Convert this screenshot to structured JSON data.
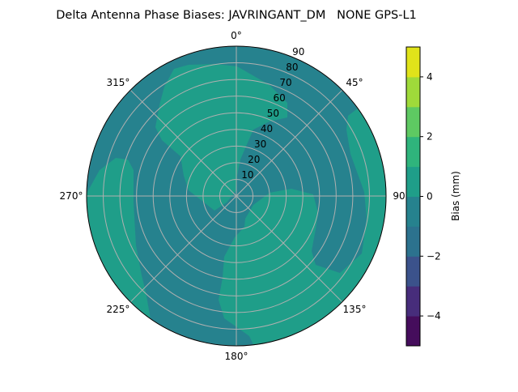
{
  "chart_data": {
    "type": "heatmap",
    "subtype": "polar-contour",
    "title": "Delta Antenna Phase Biases: JAVRINGANT_DM   NONE GPS-L1",
    "angular_axis": {
      "direction": "clockwise",
      "zero_location": "top",
      "tick_labels": [
        "0°",
        "45°",
        "90°",
        "135°",
        "180°",
        "225°",
        "270°",
        "315°"
      ],
      "tick_values": [
        0,
        45,
        90,
        135,
        180,
        225,
        270,
        315
      ]
    },
    "radial_axis": {
      "range": [
        0,
        90
      ],
      "tick_values": [
        10,
        20,
        30,
        40,
        50,
        60,
        70,
        80,
        90
      ],
      "tick_labels": [
        "10",
        "20",
        "30",
        "40",
        "50",
        "60",
        "70",
        "80",
        "90"
      ],
      "label_angle": 22.5
    },
    "grid": true,
    "colorbar": {
      "label": "Bias (mm)",
      "levels": [
        -5,
        -4,
        -3,
        -2,
        -1,
        0,
        1,
        2,
        3,
        4,
        5
      ],
      "tick_values": [
        -4,
        -2,
        0,
        2,
        4
      ],
      "tick_labels": [
        "−4",
        "−2",
        "0",
        "2",
        "4"
      ],
      "colormap": "viridis",
      "colors": [
        "#450d5c",
        "#472d7b",
        "#3b528b",
        "#2c728e",
        "#26828e",
        "#1f9e89",
        "#2fb47c",
        "#5ec962",
        "#9fda3a",
        "#e0e31a"
      ]
    },
    "regions": [
      {
        "name": "background",
        "bias_range": [
          -1,
          0
        ]
      },
      {
        "name": "north-west to center lobe",
        "bias_range": [
          0,
          1
        ]
      },
      {
        "name": "east and south lobe",
        "bias_range": [
          0,
          1
        ]
      },
      {
        "name": "west lobe",
        "bias_range": [
          0,
          1
        ]
      }
    ]
  }
}
